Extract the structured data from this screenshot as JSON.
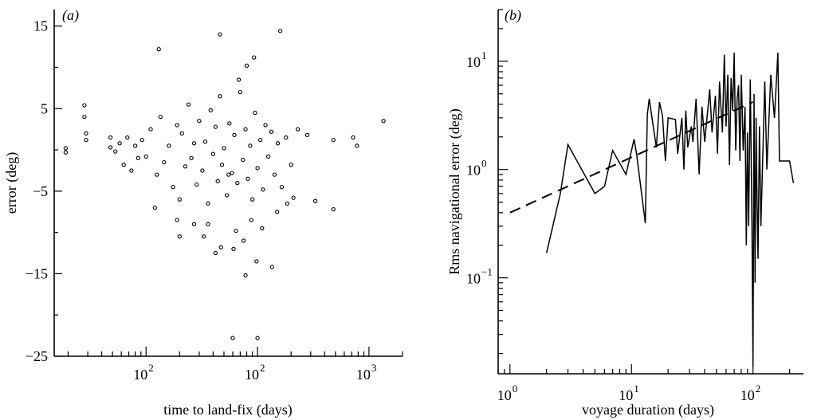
{
  "chart_data": [
    {
      "type": "scatter",
      "panel_label": "(a)",
      "xlabel": "time to land-fix (days)",
      "ylabel": "error (deg)",
      "xscale": "log",
      "xlim": [
        1.5,
        2000
      ],
      "ylim": [
        -25,
        17
      ],
      "xticks": [
        10,
        100,
        1000
      ],
      "xtick_labels": [
        "10",
        "2",
        "10",
        "2",
        "10",
        "3"
      ],
      "yticks": [
        15,
        5,
        -5,
        -15,
        -25
      ],
      "ytick_labels": [
        "15",
        "5",
        "−5",
        "−15",
        "−25"
      ],
      "points": {
        "x": [
          1.9,
          1.9,
          2.8,
          2.8,
          2.9,
          2.9,
          4.8,
          4.8,
          5.3,
          5.8,
          6.3,
          6.8,
          7.4,
          8.0,
          8.5,
          9.2,
          10.0,
          11.0,
          12.5,
          13.5,
          14.5,
          16.0,
          17.5,
          19.0,
          20.0,
          21.0,
          22.5,
          24.0,
          25.5,
          27.0,
          28.5,
          30.0,
          32.0,
          34.0,
          36.0,
          38.0,
          40.0,
          42.0,
          44.0,
          46.0,
          48.0,
          50.0,
          53.0,
          56.0,
          59.0,
          62.0,
          66.0,
          70.0,
          74.0,
          78.0,
          82.0,
          86.0,
          90.0,
          95.0,
          100.0,
          106.0,
          112.0,
          118.0,
          125.0,
          133.0,
          142.0,
          152.0,
          165.0,
          180.0,
          200.0,
          230.0,
          280.0,
          330.0,
          480.0,
          480.0,
          720.0,
          780.0,
          1350.0,
          13.0,
          46.0,
          93.0,
          160.0,
          47.0,
          98.0,
          20.0,
          78.0,
          12.0,
          19.0,
          36.0,
          61.0,
          60.0,
          100.0,
          110.0,
          135.0,
          64.0,
          75.0,
          88.0,
          150.0,
          185.0,
          210.0,
          27.0,
          33.0,
          42.0,
          55.0,
          68.0,
          80.0
        ],
        "y": [
          0.2,
          -0.3,
          5.4,
          4.0,
          2.0,
          1.2,
          1.5,
          0.3,
          -0.2,
          0.8,
          -1.8,
          1.5,
          -2.5,
          0.5,
          -1.0,
          1.2,
          -0.8,
          2.5,
          -3.0,
          4.0,
          -1.5,
          0.5,
          -4.5,
          3.0,
          -6.0,
          2.0,
          -2.0,
          5.5,
          -1.0,
          0.8,
          -4.2,
          3.5,
          -2.5,
          1.0,
          -6.5,
          4.8,
          -0.5,
          2.8,
          -3.8,
          6.5,
          -1.8,
          0.2,
          -5.5,
          3.2,
          -2.8,
          1.8,
          -4.0,
          7.0,
          -1.2,
          2.5,
          -3.5,
          0.5,
          -6.0,
          4.5,
          -2.2,
          1.2,
          -4.8,
          3.0,
          -0.8,
          2.2,
          -3.0,
          0.8,
          -4.5,
          1.5,
          -1.8,
          2.5,
          1.8,
          -6.2,
          -7.2,
          1.2,
          1.5,
          0.5,
          3.5,
          12.2,
          14.0,
          11.2,
          14.4,
          -11.8,
          -13.5,
          -10.5,
          -15.2,
          -7.0,
          -8.5,
          -9.0,
          -12.0,
          -22.8,
          -22.8,
          -9.5,
          -14.2,
          -9.8,
          -11.0,
          -8.5,
          -7.5,
          -6.5,
          -5.8,
          -9.0,
          -10.5,
          -12.5,
          -3.0,
          8.5,
          10.2
        ]
      }
    },
    {
      "type": "line",
      "panel_label": "(b)",
      "xlabel": "voyage duration (days)",
      "ylabel": "Rms navigational error (deg)",
      "xscale": "log",
      "yscale": "log",
      "xlim": [
        0.8,
        260
      ],
      "ylim": [
        0.013,
        30
      ],
      "xticks": [
        1,
        10,
        100
      ],
      "xtick_labels": [
        "10",
        "0",
        "10",
        "1",
        "10",
        "2"
      ],
      "yticks": [
        0.1,
        1,
        10
      ],
      "ytick_labels": [
        "10",
        "−1",
        "10",
        "0",
        "10",
        "1"
      ],
      "series": [
        {
          "style": "solid",
          "x": [
            2.0,
            2.6,
            3.0,
            5.0,
            6.0,
            7.0,
            9.0,
            10.5,
            11.0,
            13.0,
            13.5,
            14.0,
            16.0,
            17.0,
            18.0,
            19.0,
            20.0,
            23.0,
            24.0,
            26.0,
            27.0,
            28.0,
            29.0,
            31.0,
            32.0,
            34.0,
            36.0,
            38.0,
            40.0,
            44.0,
            46.0,
            49.0,
            51.0,
            53.0,
            56.0,
            58.0,
            60.0,
            62.0,
            64.0,
            66.0,
            68.0,
            70.0,
            72.0,
            74.0,
            76.0,
            78.0,
            80.0,
            83.0,
            86.0,
            88.0,
            90.0,
            92.0,
            95.0,
            98.0,
            100.0,
            102.0,
            104.0,
            106.0,
            108.0,
            110.0,
            113.0,
            116.0,
            120.0,
            125.0,
            130.0,
            140.0,
            150.0,
            160.0,
            165.0,
            170.0,
            200.0,
            215.0
          ],
          "y": [
            0.17,
            0.6,
            1.7,
            0.6,
            0.7,
            1.5,
            0.9,
            1.9,
            1.4,
            0.32,
            3.2,
            4.5,
            1.6,
            4.2,
            3.1,
            1.2,
            3.0,
            2.9,
            1.4,
            3.0,
            1.0,
            3.5,
            1.6,
            2.5,
            1.8,
            4.5,
            0.9,
            3.8,
            1.8,
            5.5,
            2.2,
            4.8,
            1.4,
            6.5,
            2.2,
            11.5,
            2.5,
            7.5,
            1.1,
            7.0,
            3.5,
            12.0,
            1.5,
            4.5,
            6.0,
            1.2,
            7.5,
            1.5,
            3.8,
            0.2,
            2.2,
            0.3,
            6.8,
            0.3,
            0.015,
            5.0,
            0.09,
            3.0,
            0.5,
            0.15,
            2.5,
            0.3,
            1.2,
            6.5,
            1.0,
            7.5,
            3.0,
            12.0,
            1.2,
            1.2,
            1.2,
            0.75
          ]
        },
        {
          "style": "dashed",
          "x": [
            1.0,
            100.0
          ],
          "y": [
            0.4,
            4.2
          ]
        }
      ]
    }
  ]
}
